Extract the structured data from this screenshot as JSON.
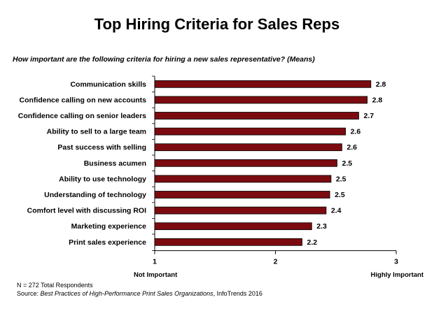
{
  "chart_data": {
    "type": "bar",
    "orientation": "horizontal",
    "title": "Top Hiring Criteria for Sales Reps",
    "subtitle": "How important are the following criteria for hiring a new sales representative? (Means)",
    "categories": [
      "Communication skills",
      "Confidence calling on new accounts",
      "Confidence calling on senior leaders",
      "Ability to sell to a large team",
      "Past success with selling",
      "Business acumen",
      "Ability to use technology",
      "Understanding of technology",
      "Comfort level with discussing ROI",
      "Marketing experience",
      "Print sales experience"
    ],
    "values": [
      2.8,
      2.8,
      2.7,
      2.6,
      2.6,
      2.5,
      2.5,
      2.5,
      2.4,
      2.3,
      2.2
    ],
    "bar_lengths": [
      2.79,
      2.76,
      2.69,
      2.58,
      2.55,
      2.51,
      2.46,
      2.45,
      2.42,
      2.3,
      2.22
    ],
    "value_labels": [
      "2.8",
      "2.8",
      "2.7",
      "2.6",
      "2.6",
      "2.5",
      "2.5",
      "2.5",
      "2.4",
      "2.3",
      "2.2"
    ],
    "xlim": [
      1,
      3
    ],
    "xticks": [
      "1",
      "2",
      "3"
    ],
    "scale_min_label": "Not Important",
    "scale_max_label": "Highly Important",
    "bar_color": "#7b0b10",
    "grid": false,
    "legend": "none"
  },
  "footnotes": {
    "respondents": "N = 272 Total Respondents",
    "source_prefix": "Source: ",
    "source_title": "Best Practices of High-Performance Print Sales Organizations",
    "source_suffix": ", InfoTrends 2016"
  }
}
